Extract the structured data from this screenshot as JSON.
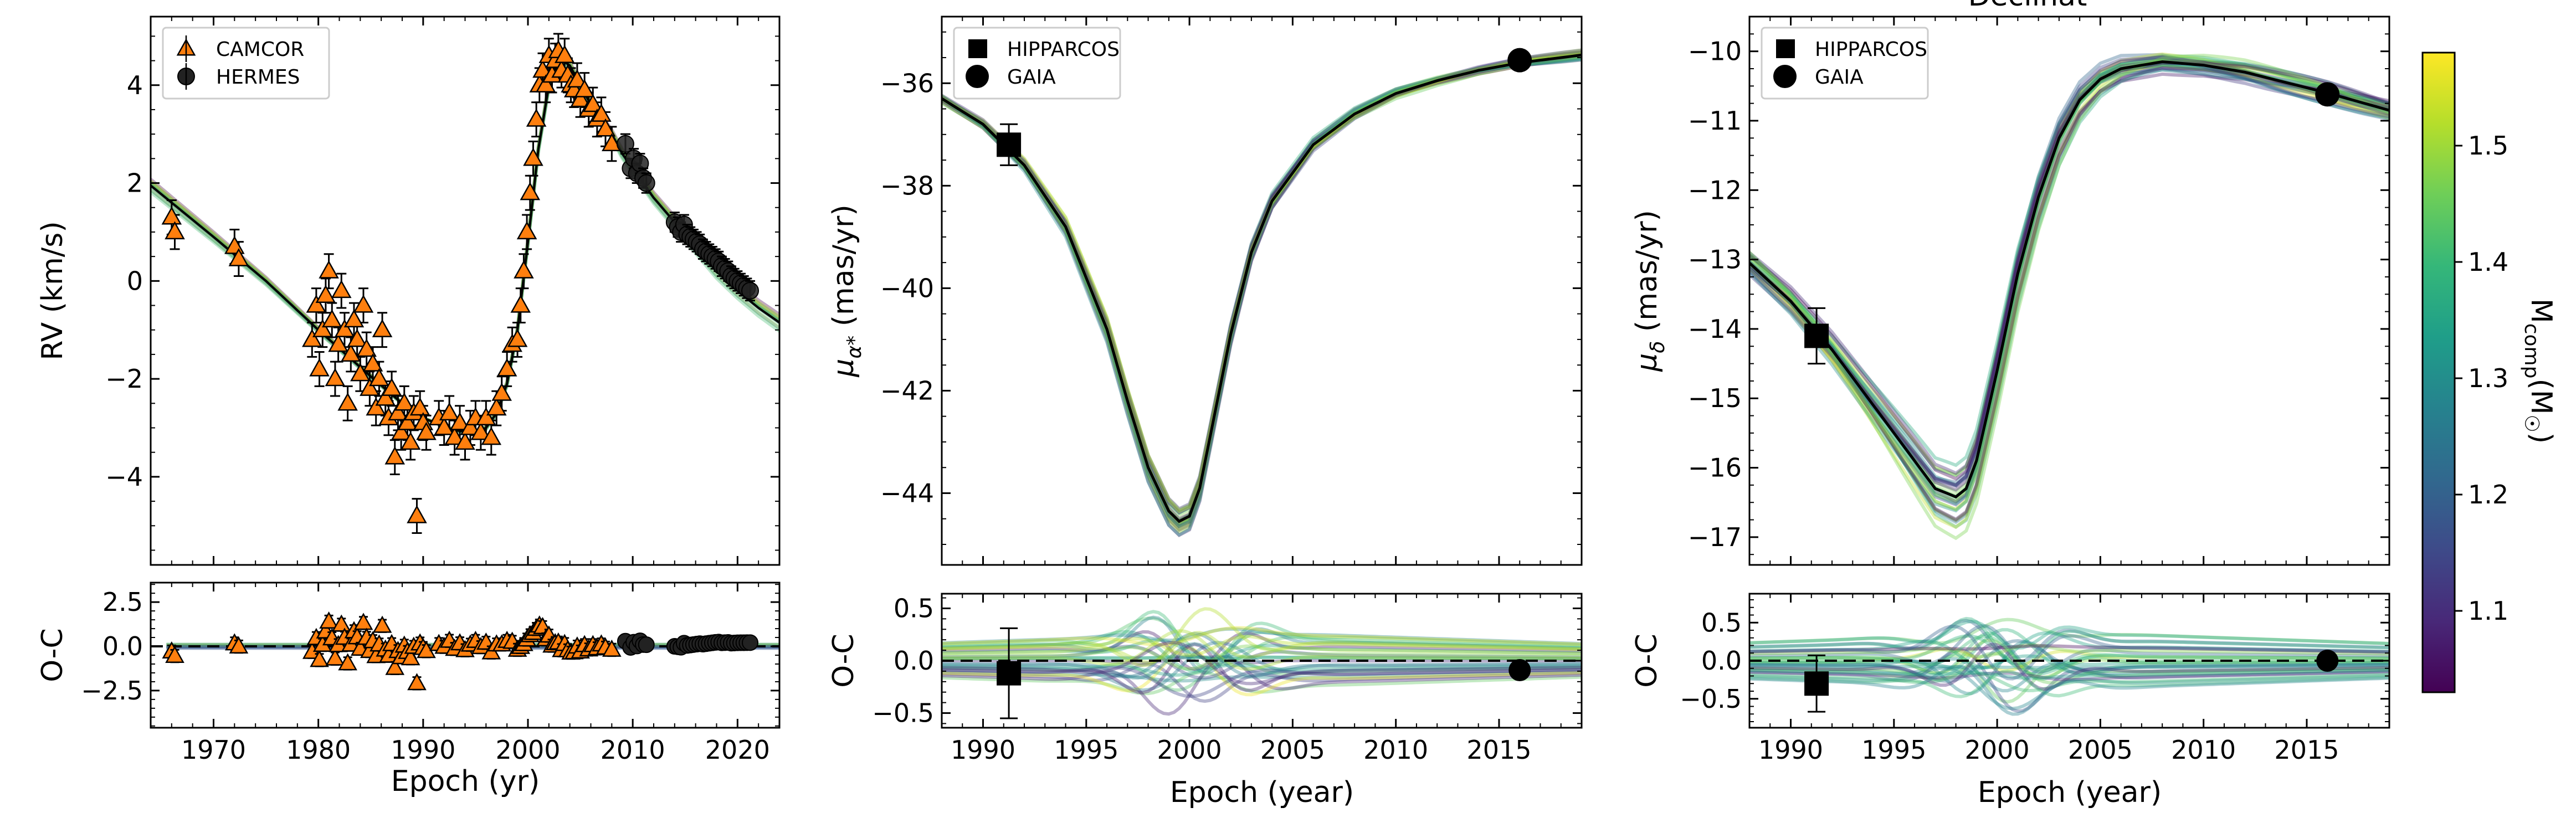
{
  "figure": {
    "partial_title": "Declinat",
    "colorbar": {
      "label": "M_comp (M_☉)",
      "label_main": "M",
      "label_sub": "comp",
      "label_tail": "(M",
      "label_close": ")",
      "range": [
        1.03,
        1.58
      ],
      "ticks": [
        "1.1",
        "1.2",
        "1.3",
        "1.4",
        "1.5"
      ],
      "tick_values": [
        1.1,
        1.2,
        1.3,
        1.4,
        1.5
      ],
      "colormap": "viridis",
      "stops": [
        "#440154",
        "#482878",
        "#3e4a89",
        "#31688e",
        "#26828e",
        "#1f9e89",
        "#35b779",
        "#6ece58",
        "#b5de2b",
        "#fde725"
      ]
    }
  },
  "chart_data": [
    {
      "id": "rv",
      "type": "scatter",
      "xlabel": "Epoch (yr)",
      "ylabel": "RV (km/s)",
      "xlim": [
        1964,
        2024
      ],
      "ylim": [
        -5.8,
        5.4
      ],
      "xticks": [
        "1970",
        "1980",
        "1990",
        "2000",
        "2010",
        "2020"
      ],
      "xtick_values": [
        1970,
        1980,
        1990,
        2000,
        2010,
        2020
      ],
      "yticks": [
        "−4",
        "−2",
        "0",
        "2",
        "4"
      ],
      "ytick_values": [
        -4,
        -2,
        0,
        2,
        4
      ],
      "legend_position": "upper-left",
      "series": [
        {
          "name": "CAMCOR",
          "marker": "triangle",
          "color": "#ff7f0e",
          "error": 0.35,
          "x": [
            1966.0,
            1966.3,
            1972.0,
            1972.4,
            1979.4,
            1979.8,
            1980.1,
            1980.4,
            1980.7,
            1981.0,
            1981.3,
            1981.6,
            1981.9,
            1982.2,
            1982.5,
            1982.8,
            1983.1,
            1983.4,
            1983.7,
            1984.0,
            1984.3,
            1984.6,
            1984.9,
            1985.2,
            1985.5,
            1985.8,
            1986.1,
            1986.4,
            1986.7,
            1987.0,
            1987.3,
            1987.6,
            1987.9,
            1988.2,
            1988.5,
            1988.8,
            1989.1,
            1989.4,
            1989.7,
            1990.0,
            1990.3,
            1991.5,
            1992.0,
            1992.5,
            1993.0,
            1993.5,
            1994.0,
            1994.5,
            1995.0,
            1995.5,
            1996.0,
            1996.5,
            1997.0,
            1997.5,
            1998.0,
            1998.5,
            1999.0,
            1999.3,
            1999.6,
            1999.9,
            2000.2,
            2000.5,
            2000.8,
            2001.1,
            2001.4,
            2001.7,
            2002.0,
            2002.3,
            2002.6,
            2002.9,
            2003.2,
            2003.5,
            2003.8,
            2004.1,
            2004.4,
            2004.7,
            2005.0,
            2005.4,
            2005.8,
            2006.2,
            2006.6,
            2007.0,
            2007.4,
            2008.0
          ],
          "y": [
            1.3,
            1.0,
            0.7,
            0.45,
            -1.2,
            -0.5,
            -1.8,
            -1.0,
            -0.3,
            0.2,
            -0.8,
            -2.0,
            -1.3,
            -0.2,
            -1.0,
            -2.5,
            -1.5,
            -0.8,
            -1.2,
            -1.9,
            -0.5,
            -1.4,
            -2.2,
            -1.7,
            -2.6,
            -2.0,
            -1.0,
            -2.4,
            -2.8,
            -2.2,
            -3.6,
            -2.7,
            -3.1,
            -2.5,
            -2.9,
            -3.3,
            -2.7,
            -4.8,
            -2.6,
            -2.9,
            -3.1,
            -2.8,
            -3.0,
            -2.7,
            -3.2,
            -2.9,
            -3.3,
            -3.0,
            -2.8,
            -3.1,
            -2.8,
            -3.2,
            -2.6,
            -2.3,
            -1.8,
            -1.3,
            -1.2,
            -0.5,
            0.2,
            1.0,
            1.8,
            2.5,
            3.3,
            4.0,
            4.3,
            4.0,
            4.6,
            4.2,
            4.5,
            4.7,
            4.3,
            4.6,
            4.2,
            4.0,
            3.9,
            4.1,
            3.7,
            3.9,
            3.5,
            3.6,
            3.3,
            3.4,
            3.1,
            2.8
          ]
        },
        {
          "name": "HERMES",
          "marker": "circle",
          "color": "#222222",
          "error": 0.2,
          "x": [
            2009.3,
            2009.8,
            2010.1,
            2010.4,
            2010.7,
            2011.0,
            2011.3,
            2014.0,
            2014.3,
            2014.6,
            2014.9,
            2015.2,
            2015.5,
            2015.8,
            2016.1,
            2016.4,
            2016.7,
            2017.0,
            2017.3,
            2017.6,
            2017.9,
            2018.2,
            2018.5,
            2018.8,
            2019.1,
            2019.4,
            2019.7,
            2020.0,
            2020.3,
            2020.6,
            2020.9,
            2021.2
          ],
          "y": [
            2.8,
            2.3,
            2.5,
            2.2,
            2.4,
            2.1,
            2.0,
            1.2,
            1.1,
            1.0,
            1.15,
            0.95,
            0.9,
            0.85,
            0.8,
            0.75,
            0.65,
            0.6,
            0.55,
            0.5,
            0.45,
            0.4,
            0.3,
            0.25,
            0.2,
            0.1,
            0.05,
            0.0,
            -0.05,
            -0.1,
            -0.15,
            -0.2
          ]
        }
      ],
      "model": {
        "x": [
          1964,
          1966,
          1970,
          1975,
          1980,
          1985,
          1988,
          1990,
          1993,
          1995,
          1996,
          1997,
          1998,
          1999,
          2000,
          2001,
          2002,
          2003,
          2004,
          2005,
          2006,
          2007,
          2008,
          2009,
          2010,
          2012,
          2014,
          2016,
          2018,
          2020,
          2022,
          2024
        ],
        "y": [
          1.95,
          1.6,
          0.9,
          0.0,
          -1.0,
          -1.95,
          -2.5,
          -2.8,
          -3.05,
          -3.1,
          -3.0,
          -2.7,
          -2.1,
          -1.0,
          0.8,
          2.7,
          4.0,
          4.55,
          4.4,
          4.0,
          3.6,
          3.3,
          3.0,
          2.6,
          2.3,
          1.7,
          1.2,
          0.7,
          0.2,
          -0.2,
          -0.55,
          -0.85
        ]
      }
    },
    {
      "id": "rv-oc",
      "type": "scatter",
      "ylabel": "O-C",
      "xlim": [
        1964,
        2024
      ],
      "ylim": [
        -4.6,
        3.6
      ],
      "yticks": [
        "−2.5",
        "0.0",
        "2.5"
      ],
      "ytick_values": [
        -2.5,
        0.0,
        2.5
      ]
    },
    {
      "id": "pmra",
      "type": "line",
      "ylabel_main": "μ",
      "ylabel_sub": "α*",
      "ylabel_rest": " (mas/yr)",
      "xlim": [
        1988,
        2019
      ],
      "ylim": [
        -45.4,
        -34.7
      ],
      "yticks": [
        "−44",
        "−42",
        "−40",
        "−38",
        "−36"
      ],
      "ytick_values": [
        -44,
        -42,
        -40,
        -38,
        -36
      ],
      "legend_position": "upper-left",
      "series": [
        {
          "name": "HIPPARCOS",
          "marker": "square",
          "x": [
            1991.25
          ],
          "y": [
            -37.2
          ],
          "error": [
            0.4
          ]
        },
        {
          "name": "GAIA",
          "marker": "circle",
          "x": [
            2016.0
          ],
          "y": [
            -35.55
          ],
          "error": [
            0.05
          ]
        }
      ],
      "model": {
        "x": [
          1988,
          1990,
          1992,
          1994,
          1996,
          1997,
          1998,
          1999,
          1999.5,
          2000,
          2000.5,
          2001,
          2002,
          2003,
          2004,
          2006,
          2008,
          2010,
          2012,
          2014,
          2016,
          2019
        ],
        "y": [
          -36.3,
          -36.8,
          -37.6,
          -38.8,
          -40.8,
          -42.2,
          -43.5,
          -44.35,
          -44.55,
          -44.45,
          -43.9,
          -42.9,
          -40.9,
          -39.3,
          -38.3,
          -37.2,
          -36.6,
          -36.2,
          -35.95,
          -35.75,
          -35.6,
          -35.45
        ]
      }
    },
    {
      "id": "pmra-oc",
      "type": "line",
      "ylabel": "O-C",
      "xlabel": "Epoch (year)",
      "xlim": [
        1988,
        2019
      ],
      "ylim": [
        -0.64,
        0.64
      ],
      "xticks": [
        "1990",
        "1995",
        "2000",
        "2005",
        "2010",
        "2015"
      ],
      "xtick_values": [
        1990,
        1995,
        2000,
        2005,
        2010,
        2015
      ],
      "yticks": [
        "−0.5",
        "0.0",
        "0.5"
      ],
      "ytick_values": [
        -0.5,
        0.0,
        0.5
      ],
      "series": [
        {
          "name": "HIPPARCOS",
          "marker": "square",
          "x": [
            1991.25
          ],
          "y": [
            -0.12
          ],
          "error": [
            0.43
          ]
        },
        {
          "name": "GAIA",
          "marker": "circle",
          "x": [
            2016.0
          ],
          "y": [
            -0.09
          ],
          "error": [
            0.04
          ]
        }
      ]
    },
    {
      "id": "pmdec",
      "type": "line",
      "ylabel_main": "μ",
      "ylabel_sub": "δ",
      "ylabel_rest": " (mas/yr)",
      "xlim": [
        1988,
        2019
      ],
      "ylim": [
        -17.4,
        -9.5
      ],
      "yticks": [
        "−17",
        "−16",
        "−15",
        "−14",
        "−13",
        "−12",
        "−11",
        "−10"
      ],
      "ytick_values": [
        -17,
        -16,
        -15,
        -14,
        -13,
        -12,
        -11,
        -10
      ],
      "legend_position": "upper-left",
      "series": [
        {
          "name": "HIPPARCOS",
          "marker": "square",
          "x": [
            1991.25
          ],
          "y": [
            -14.1
          ],
          "error": [
            0.4
          ]
        },
        {
          "name": "GAIA",
          "marker": "circle",
          "x": [
            2016.0
          ],
          "y": [
            -10.62
          ],
          "error": [
            0.05
          ]
        }
      ],
      "model": {
        "x": [
          1988,
          1990,
          1992,
          1994,
          1996,
          1997,
          1998,
          1998.5,
          1999,
          2000,
          2001,
          2002,
          2003,
          2004,
          2005,
          2006,
          2008,
          2010,
          2012,
          2014,
          2016,
          2019
        ],
        "y": [
          -13.05,
          -13.6,
          -14.3,
          -15.1,
          -15.9,
          -16.3,
          -16.42,
          -16.3,
          -15.9,
          -14.6,
          -13.2,
          -12.1,
          -11.25,
          -10.7,
          -10.4,
          -10.25,
          -10.15,
          -10.2,
          -10.3,
          -10.45,
          -10.6,
          -10.85
        ]
      }
    },
    {
      "id": "pmdec-oc",
      "type": "line",
      "ylabel": "O-C",
      "xlabel": "Epoch (year)",
      "xlim": [
        1988,
        2019
      ],
      "ylim": [
        -0.88,
        0.88
      ],
      "xticks": [
        "1990",
        "1995",
        "2000",
        "2005",
        "2010",
        "2015"
      ],
      "xtick_values": [
        1990,
        1995,
        2000,
        2005,
        2010,
        2015
      ],
      "yticks": [
        "−0.5",
        "0.0",
        "0.5"
      ],
      "ytick_values": [
        -0.5,
        0.0,
        0.5
      ],
      "series": [
        {
          "name": "HIPPARCOS",
          "marker": "square",
          "x": [
            1991.25
          ],
          "y": [
            -0.3
          ],
          "error": [
            0.37
          ]
        },
        {
          "name": "GAIA",
          "marker": "circle",
          "x": [
            2016.0
          ],
          "y": [
            0.0
          ],
          "error": [
            0.08
          ]
        }
      ]
    }
  ]
}
